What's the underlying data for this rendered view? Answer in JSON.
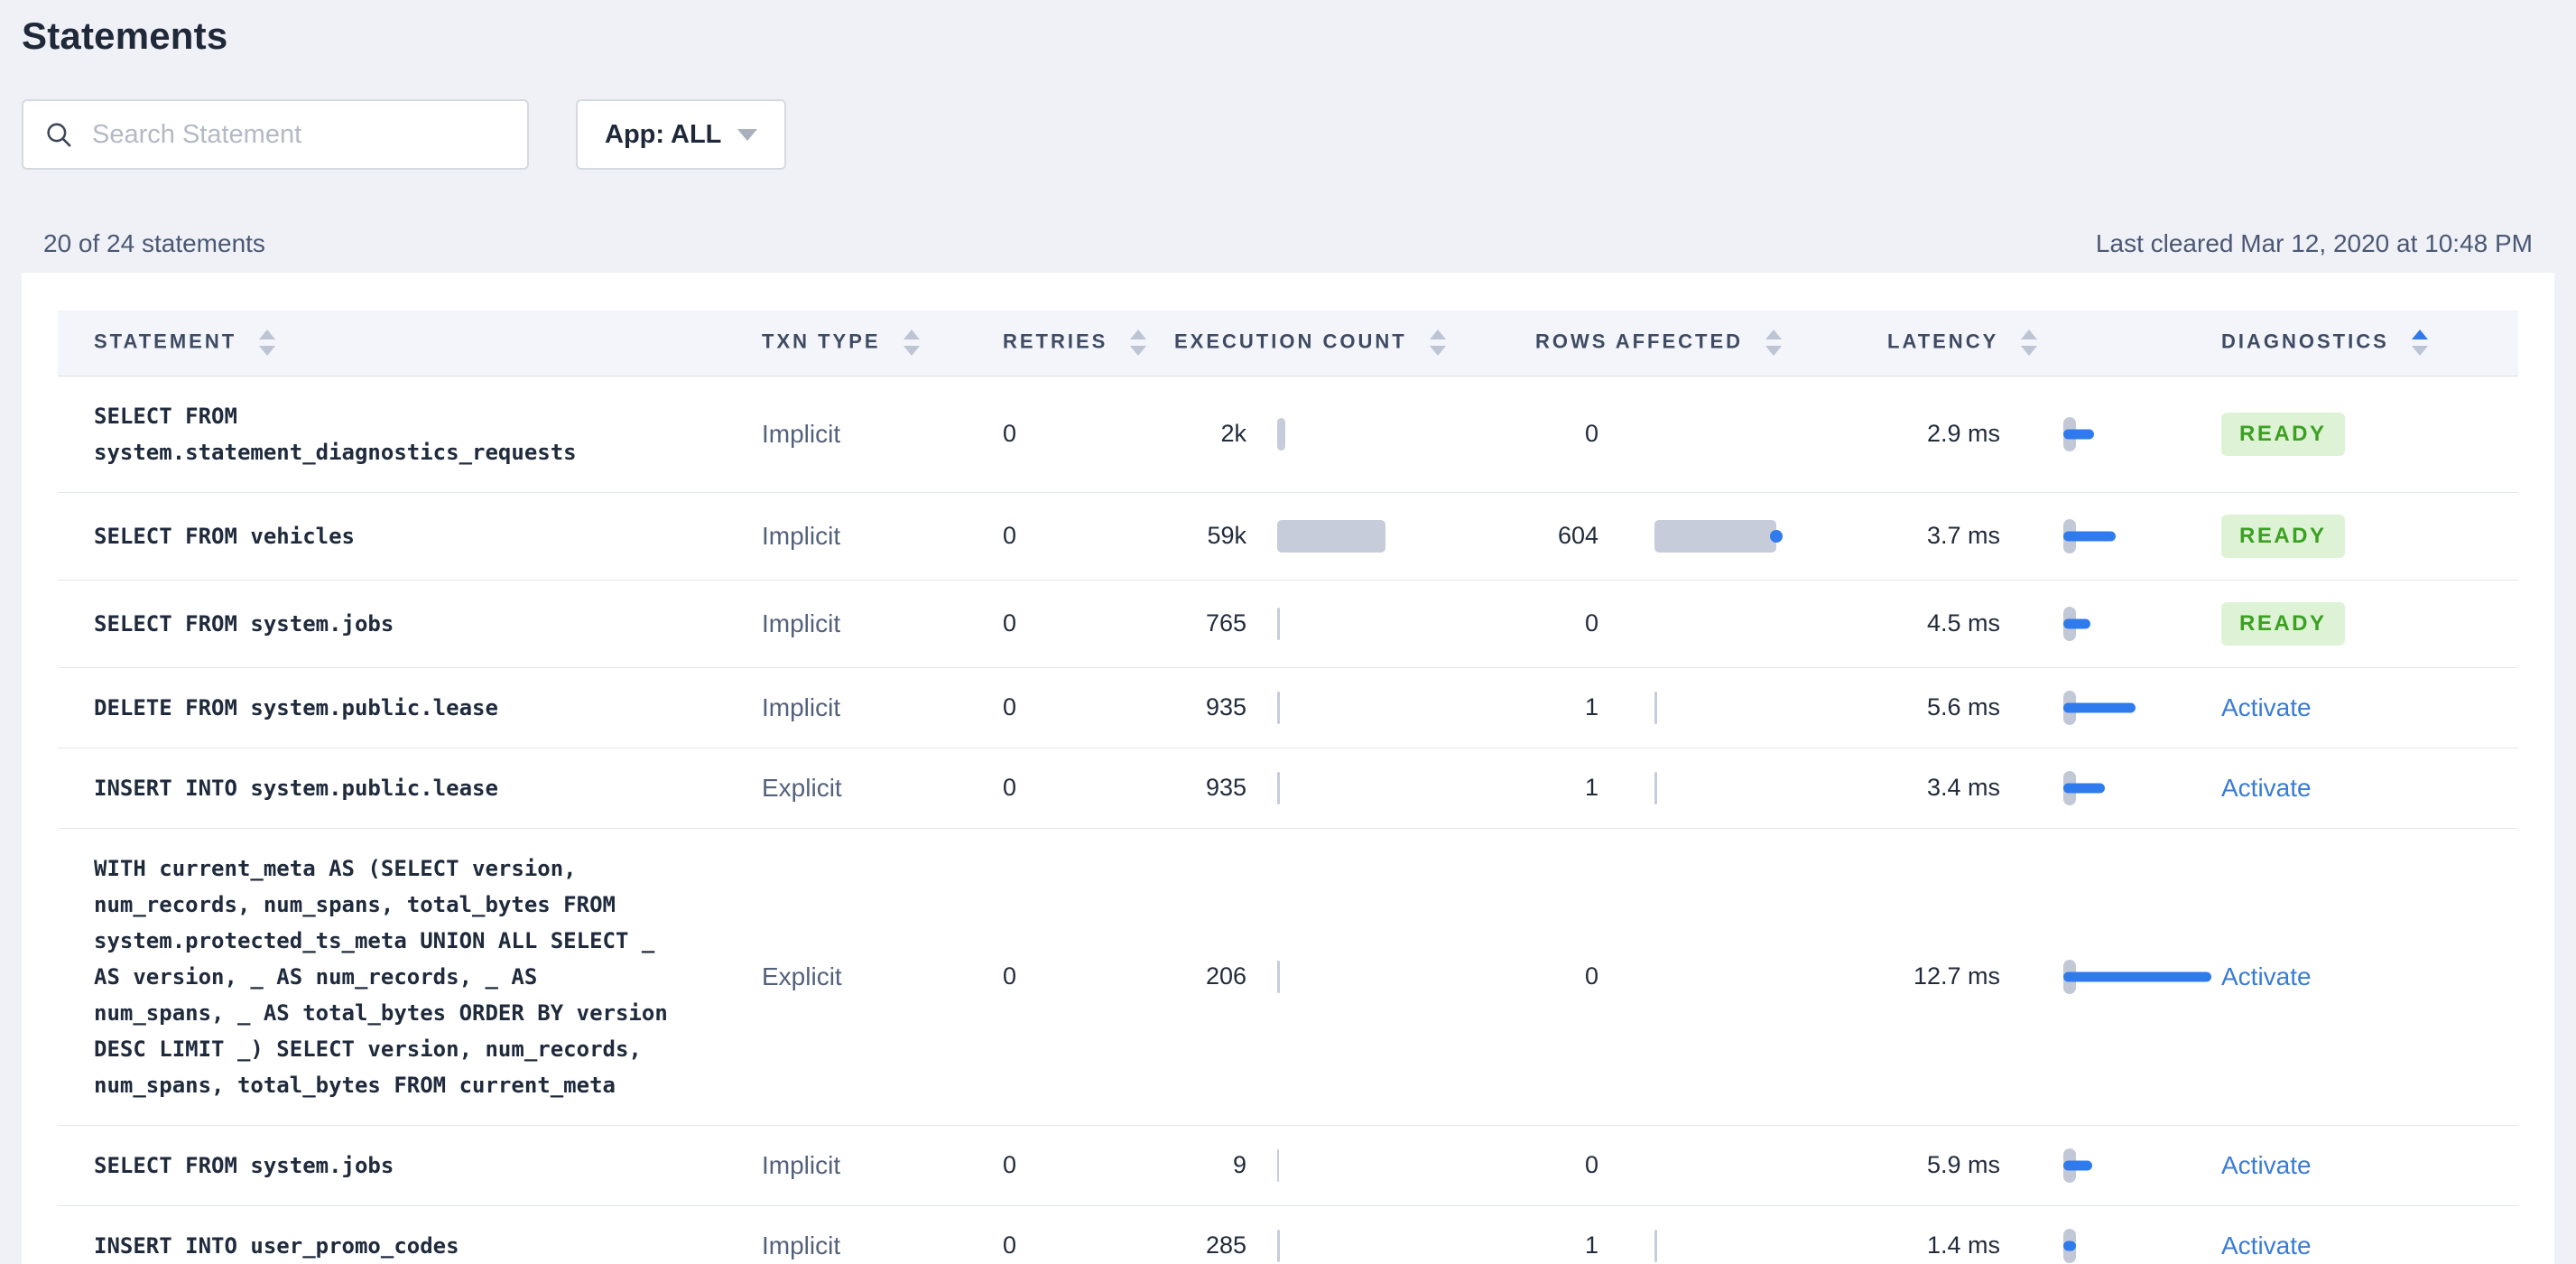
{
  "page": {
    "title": "Statements",
    "search_placeholder": "Search Statement",
    "app_filter_label": "App: ALL",
    "results_summary": "20 of 24 statements",
    "last_cleared": "Last cleared Mar 12, 2020 at 10:48 PM"
  },
  "table": {
    "columns": [
      "STATEMENT",
      "TXN TYPE",
      "RETRIES",
      "EXECUTION COUNT",
      "ROWS AFFECTED",
      "LATENCY",
      "DIAGNOSTICS"
    ],
    "sort": {
      "column": "DIAGNOSTICS",
      "direction": "ascending"
    },
    "diagnostics_ready_label": "READY",
    "diagnostics_activate_label": "Activate",
    "rows": [
      {
        "statement": "SELECT FROM system.statement_diagnostics_requests",
        "txn_type": "Implicit",
        "retries": "0",
        "execution_count": "2k",
        "execution_bar": 9,
        "rows_affected": "0",
        "rows_bar": 0,
        "latency": "2.9 ms",
        "latency_bar": 34,
        "diagnostics": "READY"
      },
      {
        "statement": "SELECT FROM vehicles",
        "txn_type": "Implicit",
        "retries": "0",
        "execution_count": "59k",
        "execution_bar": 120,
        "rows_affected": "604",
        "rows_bar": 135,
        "latency": "3.7 ms",
        "latency_bar": 58,
        "diagnostics": "READY"
      },
      {
        "statement": "SELECT FROM system.jobs",
        "txn_type": "Implicit",
        "retries": "0",
        "execution_count": "765",
        "execution_bar": 3,
        "rows_affected": "0",
        "rows_bar": 0,
        "latency": "4.5 ms",
        "latency_bar": 30,
        "diagnostics": "READY"
      },
      {
        "statement": "DELETE FROM system.public.lease",
        "txn_type": "Implicit",
        "retries": "0",
        "execution_count": "935",
        "execution_bar": 3,
        "rows_affected": "1",
        "rows_bar": 3,
        "latency": "5.6 ms",
        "latency_bar": 80,
        "diagnostics": "Activate"
      },
      {
        "statement": "INSERT INTO system.public.lease",
        "txn_type": "Explicit",
        "retries": "0",
        "execution_count": "935",
        "execution_bar": 3,
        "rows_affected": "1",
        "rows_bar": 3,
        "latency": "3.4 ms",
        "latency_bar": 46,
        "diagnostics": "Activate"
      },
      {
        "statement": "WITH current_meta AS (SELECT version, num_records, num_spans, total_bytes FROM system.protected_ts_meta UNION ALL SELECT _ AS version, _ AS num_records, _ AS num_spans, _ AS total_bytes ORDER BY version DESC LIMIT _) SELECT version, num_records, num_spans, total_bytes FROM current_meta",
        "txn_type": "Explicit",
        "retries": "0",
        "execution_count": "206",
        "execution_bar": 3,
        "rows_affected": "0",
        "rows_bar": 0,
        "latency": "12.7 ms",
        "latency_bar": 164,
        "diagnostics": "Activate"
      },
      {
        "statement": "SELECT FROM system.jobs",
        "txn_type": "Implicit",
        "retries": "0",
        "execution_count": "9",
        "execution_bar": 2,
        "rows_affected": "0",
        "rows_bar": 0,
        "latency": "5.9 ms",
        "latency_bar": 32,
        "diagnostics": "Activate"
      },
      {
        "statement": "INSERT INTO user_promo_codes",
        "txn_type": "Implicit",
        "retries": "0",
        "execution_count": "285",
        "execution_bar": 3,
        "rows_affected": "1",
        "rows_bar": 3,
        "latency": "1.4 ms",
        "latency_bar": 14,
        "diagnostics": "Activate"
      }
    ]
  },
  "colors": {
    "page_background": "#eff1f6",
    "card_background": "#ffffff",
    "header_row_background": "#f3f5fa",
    "accent_blue": "#2f7bed",
    "link_blue": "#3a7cd4",
    "bar_gray": "#c7ccda",
    "ready_badge_background": "#def3d5",
    "ready_badge_text": "#3ca023"
  }
}
